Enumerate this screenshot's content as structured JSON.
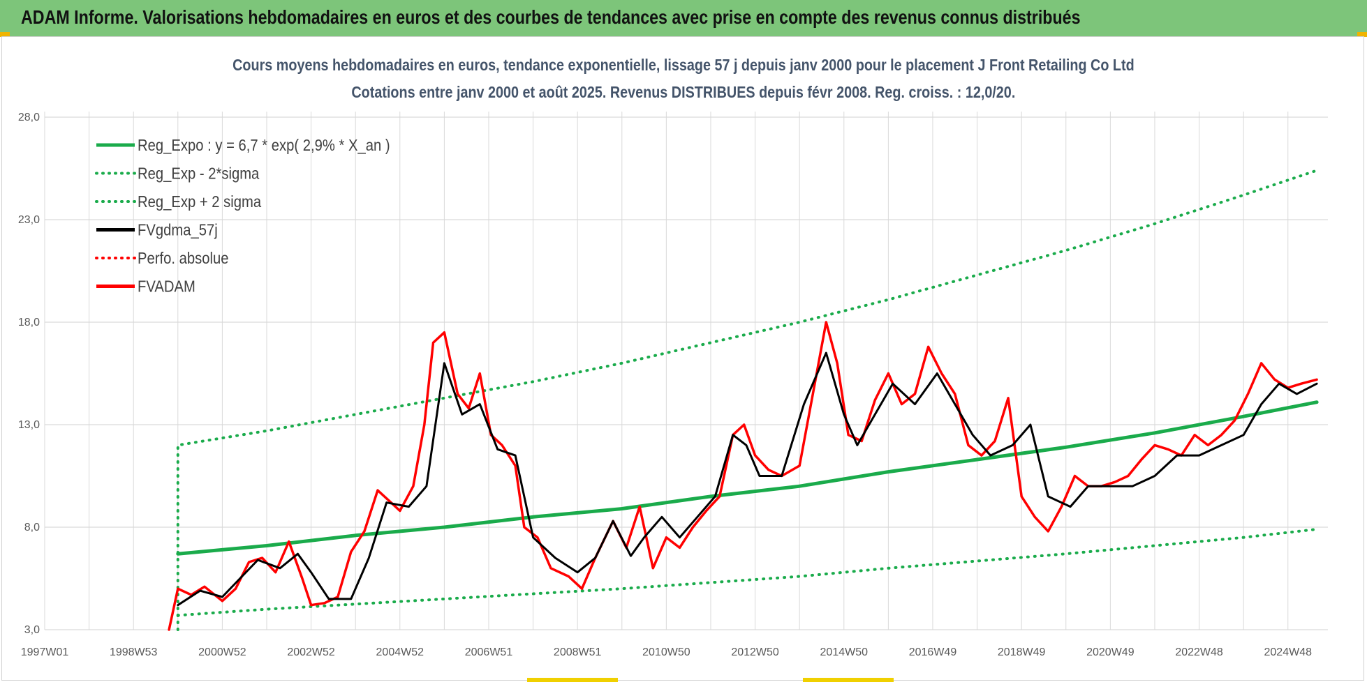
{
  "banner": {
    "title": "ADAM Informe. Valorisations hebdomadaires en euros et des courbes de tendances avec prise en compte des revenus connus distribués"
  },
  "colors": {
    "banner_bg": "#7dc57a",
    "reg_green": "#1aab4b",
    "fvgdma_black": "#000000",
    "fvadam_red": "#ff0000",
    "grid": "#d9d9d9",
    "title_text": "#44546a"
  },
  "chart_data": {
    "type": "line",
    "title": "Cours moyens hebdomadaires en euros, tendance exponentielle, lissage 57 j depuis janv 2000 pour le placement J Front Retailing Co Ltd",
    "subtitle": "Cotations entre janv 2000 et août 2025. Revenus DISTRIBUES depuis févr 2008. Reg. croiss. : 12,0/20.",
    "xlabel": "",
    "ylabel": "",
    "x_range": [
      1997.0,
      2025.9
    ],
    "ylim": [
      3.0,
      28.0
    ],
    "y_ticks": [
      "28,0",
      "23,0",
      "18,0",
      "13,0",
      "8,0",
      "3,0"
    ],
    "y_tick_values": [
      28,
      23,
      18,
      13,
      8,
      3
    ],
    "x_tick_labels": [
      "1997W01",
      "1998W53",
      "2000W52",
      "2002W52",
      "2004W52",
      "2006W51",
      "2008W51",
      "2010W50",
      "2012W50",
      "2014W50",
      "2016W49",
      "2018W49",
      "2020W49",
      "2022W48",
      "2024W48"
    ],
    "x_tick_values": [
      1997.0,
      1999.0,
      2001.0,
      2003.0,
      2005.0,
      2007.0,
      2009.0,
      2011.0,
      2013.0,
      2015.0,
      2017.0,
      2019.0,
      2021.0,
      2023.0,
      2025.0
    ],
    "grid": true,
    "legend_position": "top-left",
    "legend": [
      {
        "label": "Reg_Expo : y = 6,7 * exp( 2,9% *  X_an )",
        "style": "solid",
        "color": "#1aab4b"
      },
      {
        "label": "Reg_Exp - 2*sigma",
        "style": "dotted",
        "color": "#1aab4b"
      },
      {
        "label": "Reg_Exp + 2 sigma",
        "style": "dotted",
        "color": "#1aab4b"
      },
      {
        "label": "FVgdma_57j",
        "style": "solid",
        "color": "#000000"
      },
      {
        "label": "Perfo. absolue",
        "style": "dotted",
        "color": "#ff0000"
      },
      {
        "label": "FVADAM",
        "style": "solid",
        "color": "#ff0000"
      }
    ],
    "series": [
      {
        "name": "Reg_Expo : y = 6,7 * exp( 2,9% *  X_an )",
        "style": "solid",
        "x": [
          2000.0,
          2002.0,
          2004.0,
          2006.0,
          2008.0,
          2010.0,
          2012.0,
          2014.0,
          2016.0,
          2018.0,
          2020.0,
          2022.0,
          2024.0,
          2025.65
        ],
        "y": [
          6.7,
          7.1,
          7.6,
          8.0,
          8.5,
          8.9,
          9.5,
          10.0,
          10.7,
          11.3,
          11.9,
          12.6,
          13.4,
          14.1
        ]
      },
      {
        "name": "Reg_Exp - 2*sigma",
        "style": "dotted",
        "x": [
          2000.0,
          2002.0,
          2004.0,
          2006.0,
          2008.0,
          2010.0,
          2012.0,
          2014.0,
          2016.0,
          2018.0,
          2020.0,
          2022.0,
          2024.0,
          2025.65
        ],
        "y": [
          3.7,
          4.0,
          4.25,
          4.5,
          4.75,
          5.0,
          5.3,
          5.6,
          6.0,
          6.35,
          6.7,
          7.1,
          7.5,
          7.9
        ]
      },
      {
        "name": "Reg_Exp + 2 sigma",
        "style": "dotted",
        "x": [
          2000.0,
          2002.0,
          2004.0,
          2006.0,
          2008.0,
          2010.0,
          2012.0,
          2014.0,
          2016.0,
          2018.0,
          2020.0,
          2022.0,
          2024.0,
          2025.65
        ],
        "y": [
          12.0,
          12.7,
          13.5,
          14.3,
          15.1,
          16.0,
          17.0,
          18.0,
          19.1,
          20.3,
          21.5,
          22.8,
          24.2,
          25.4
        ]
      },
      {
        "name": "FVgdma_57j",
        "style": "solid",
        "x": [
          2000.0,
          2000.5,
          2001.0,
          2001.4,
          2001.8,
          2002.3,
          2002.7,
          2003.0,
          2003.4,
          2003.9,
          2004.3,
          2004.7,
          2005.2,
          2005.6,
          2006.0,
          2006.4,
          2006.8,
          2007.2,
          2007.6,
          2008.0,
          2008.5,
          2009.0,
          2009.4,
          2009.8,
          2010.2,
          2010.5,
          2010.9,
          2011.3,
          2011.7,
          2012.1,
          2012.5,
          2012.8,
          2013.1,
          2013.6,
          2014.1,
          2014.6,
          2015.0,
          2015.3,
          2015.7,
          2016.1,
          2016.6,
          2017.1,
          2017.5,
          2017.9,
          2018.3,
          2018.8,
          2019.2,
          2019.6,
          2020.1,
          2020.5,
          2021.0,
          2021.5,
          2022.0,
          2022.5,
          2023.0,
          2023.5,
          2024.0,
          2024.4,
          2024.8,
          2025.2,
          2025.65
        ],
        "y": [
          4.2,
          4.9,
          4.6,
          5.5,
          6.4,
          6.0,
          6.7,
          5.8,
          4.5,
          4.5,
          6.5,
          9.2,
          9.0,
          10.0,
          16.0,
          13.5,
          14.0,
          11.8,
          11.5,
          7.5,
          6.5,
          5.8,
          6.5,
          8.3,
          6.6,
          7.5,
          8.5,
          7.5,
          8.5,
          9.5,
          12.5,
          12.0,
          10.5,
          10.5,
          14.0,
          16.5,
          13.5,
          12.0,
          13.5,
          15.0,
          14.0,
          15.5,
          14.0,
          12.5,
          11.5,
          12.0,
          13.0,
          9.5,
          9.0,
          10.0,
          10.0,
          10.0,
          10.5,
          11.5,
          11.5,
          12.0,
          12.5,
          14.0,
          15.0,
          14.5,
          15.0
        ]
      },
      {
        "name": "FVADAM",
        "style": "solid",
        "x": [
          1999.8,
          2000.0,
          2000.3,
          2000.6,
          2001.0,
          2001.3,
          2001.6,
          2001.9,
          2002.2,
          2002.5,
          2002.8,
          2003.0,
          2003.3,
          2003.6,
          2003.9,
          2004.2,
          2004.5,
          2004.8,
          2005.0,
          2005.3,
          2005.55,
          2005.75,
          2006.0,
          2006.3,
          2006.55,
          2006.8,
          2007.05,
          2007.3,
          2007.6,
          2007.8,
          2008.1,
          2008.4,
          2008.8,
          2009.1,
          2009.4,
          2009.8,
          2010.1,
          2010.4,
          2010.7,
          2011.0,
          2011.3,
          2011.6,
          2011.9,
          2012.2,
          2012.5,
          2012.75,
          2013.0,
          2013.3,
          2013.6,
          2014.0,
          2014.3,
          2014.6,
          2014.85,
          2015.1,
          2015.4,
          2015.7,
          2016.0,
          2016.3,
          2016.6,
          2016.9,
          2017.2,
          2017.5,
          2017.8,
          2018.1,
          2018.4,
          2018.7,
          2019.0,
          2019.3,
          2019.6,
          2019.9,
          2020.2,
          2020.5,
          2020.8,
          2021.1,
          2021.4,
          2021.7,
          2022.0,
          2022.3,
          2022.6,
          2022.9,
          2023.2,
          2023.5,
          2023.8,
          2024.1,
          2024.4,
          2024.7,
          2025.0,
          2025.3,
          2025.65
        ],
        "y": [
          3.0,
          5.0,
          4.7,
          5.1,
          4.4,
          5.0,
          6.3,
          6.5,
          5.8,
          7.3,
          5.5,
          4.2,
          4.3,
          4.6,
          6.8,
          7.8,
          9.8,
          9.2,
          8.8,
          10.0,
          13.0,
          17.0,
          17.5,
          14.5,
          13.8,
          15.5,
          12.5,
          12.0,
          11.0,
          8.0,
          7.5,
          6.0,
          5.6,
          5.0,
          6.5,
          8.3,
          7.0,
          9.0,
          6.0,
          7.5,
          7.0,
          8.0,
          8.8,
          9.5,
          12.5,
          13.0,
          11.5,
          10.8,
          10.5,
          11.0,
          14.5,
          18.0,
          16.0,
          12.5,
          12.2,
          14.2,
          15.5,
          14.0,
          14.5,
          16.8,
          15.5,
          14.5,
          12.0,
          11.5,
          12.2,
          14.3,
          9.5,
          8.5,
          7.8,
          9.0,
          10.5,
          10.0,
          10.0,
          10.2,
          10.5,
          11.3,
          12.0,
          11.8,
          11.5,
          12.5,
          12.0,
          12.5,
          13.2,
          14.5,
          16.0,
          15.2,
          14.8,
          15.0,
          15.2
        ]
      }
    ]
  }
}
